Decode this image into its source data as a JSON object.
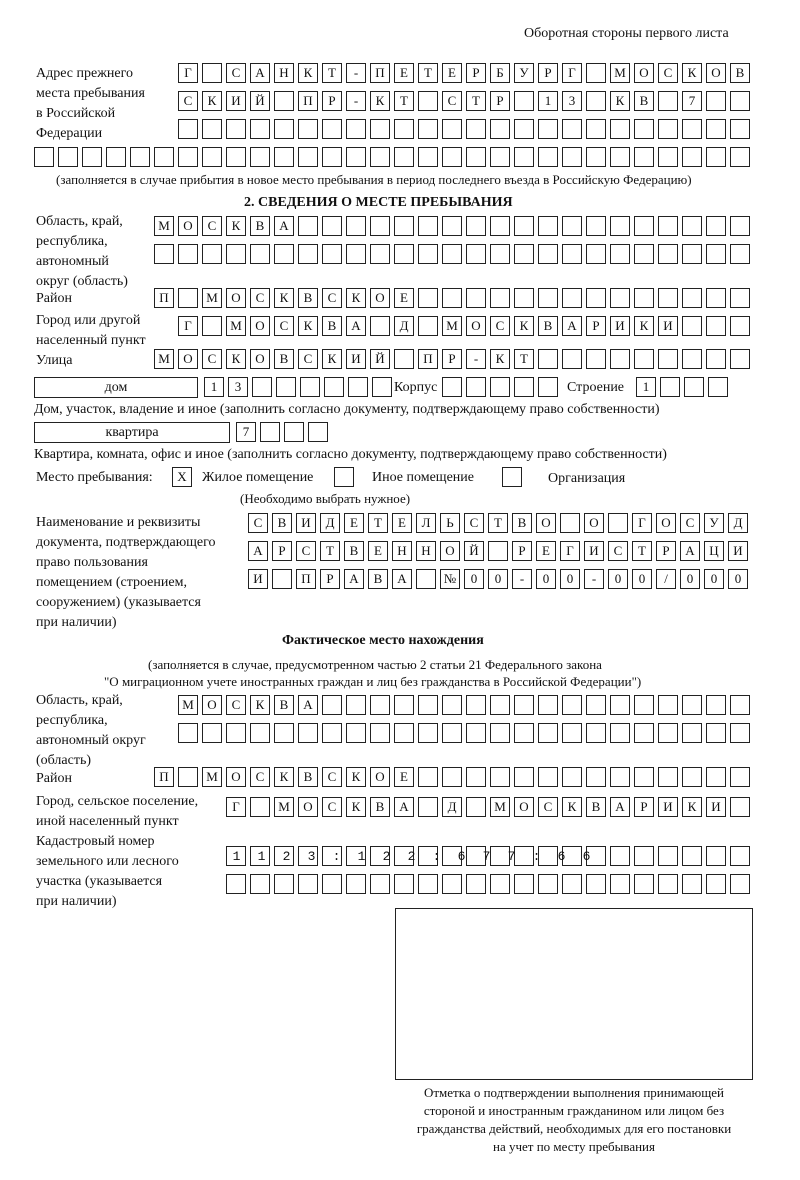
{
  "header": "Оборотная стороны первого листа",
  "prev_address": {
    "label": [
      "Адрес прежнего",
      "места пребывания",
      "в Российской",
      "Федерации"
    ],
    "rows": [
      "Г САНКТ-ПЕТЕРБУРГ МОСКОВ",
      "СКИЙ ПР-КТ СТР 13 КВ 7  ",
      "                        ",
      "                              "
    ],
    "note": "(заполняется в случае прибытия в новое место пребывания в период последнего въезда в Российскую Федерацию)"
  },
  "section2": {
    "title": "2. СВЕДЕНИЯ О МЕСТЕ ПРЕБЫВАНИЯ",
    "region_label": [
      "Область, край,",
      "республика,",
      "автономный",
      "округ (область)"
    ],
    "region_rows": [
      "МОСКВА                   ",
      "                         "
    ],
    "district_label": "Район",
    "district": "П МОСКВСКОЕ              ",
    "city_label": [
      "Город или другой",
      "населенный пункт"
    ],
    "city": "Г МОСКВА Д МОСКВАРИКИ   ",
    "street_label": "Улица",
    "street": "МОСКОВСКИЙ ПР-КТ         ",
    "house_type": "дом",
    "house": "13      ",
    "korpus_label": "Корпус",
    "korpus": "     ",
    "stroenie_label": "Строение",
    "stroenie": "1   ",
    "house_note": "Дом, участок, владение и иное (заполнить согласно документу, подтверждающему право собственности)",
    "flat_type": "квартира",
    "flat": "7   ",
    "flat_note": "Квартира, комната, офис и иное (заполнить согласно документу, подтверждающему право собственности)",
    "place_label": "Место пребывания:",
    "place_options": [
      {
        "label": "Жилое помещение",
        "mark": "X"
      },
      {
        "label": "Иное помещение",
        "mark": ""
      },
      {
        "label": "Организация",
        "mark": ""
      }
    ],
    "place_note": "(Необходимо выбрать нужное)",
    "doc_label": [
      "Наименование и реквизиты",
      "документа, подтверждающего",
      "право пользования",
      "помещением (строением,",
      "сооружением) (указывается",
      "при наличии)"
    ],
    "doc_rows": [
      "СВИДЕТЕЛЬСТВО О ГОСУД",
      "АРСТВЕННОЙ РЕГИСТРАЦИ",
      "И ПРАВА №00-00-00/000"
    ]
  },
  "actual": {
    "title": "Фактическое место нахождения",
    "subtitle": [
      "(заполняется в случае, предусмотренном частью 2 статьи 21 Федерального закона",
      "\"О миграционном учете иностранных граждан и лиц без гражданства в Российской Федерации\")"
    ],
    "region_label": [
      "Область, край,",
      "республика,",
      "автономный округ",
      "(область)"
    ],
    "region_rows": [
      "МОСКВА                  ",
      "                        "
    ],
    "district_label": "Район",
    "district": "П МОСКВСКОЕ              ",
    "city_label": [
      "Город, сельское поселение,",
      "иной населенный пункт"
    ],
    "city": "Г МОСКВА Д МОСКВАРИКИ ",
    "cadastre_label": [
      "Кадастровый номер",
      "земельного или лесного",
      "участка (указывается",
      "при наличии)"
    ],
    "cadastre_rows": [
      "1123:122:677:66       ",
      "                      "
    ]
  },
  "stamp_caption": [
    "Отметка о подтверждении выполнения принимающей",
    "стороной и иностранным гражданином или лицом без",
    "гражданства действий, необходимых для его постановки",
    "на учет по месту пребывания"
  ]
}
